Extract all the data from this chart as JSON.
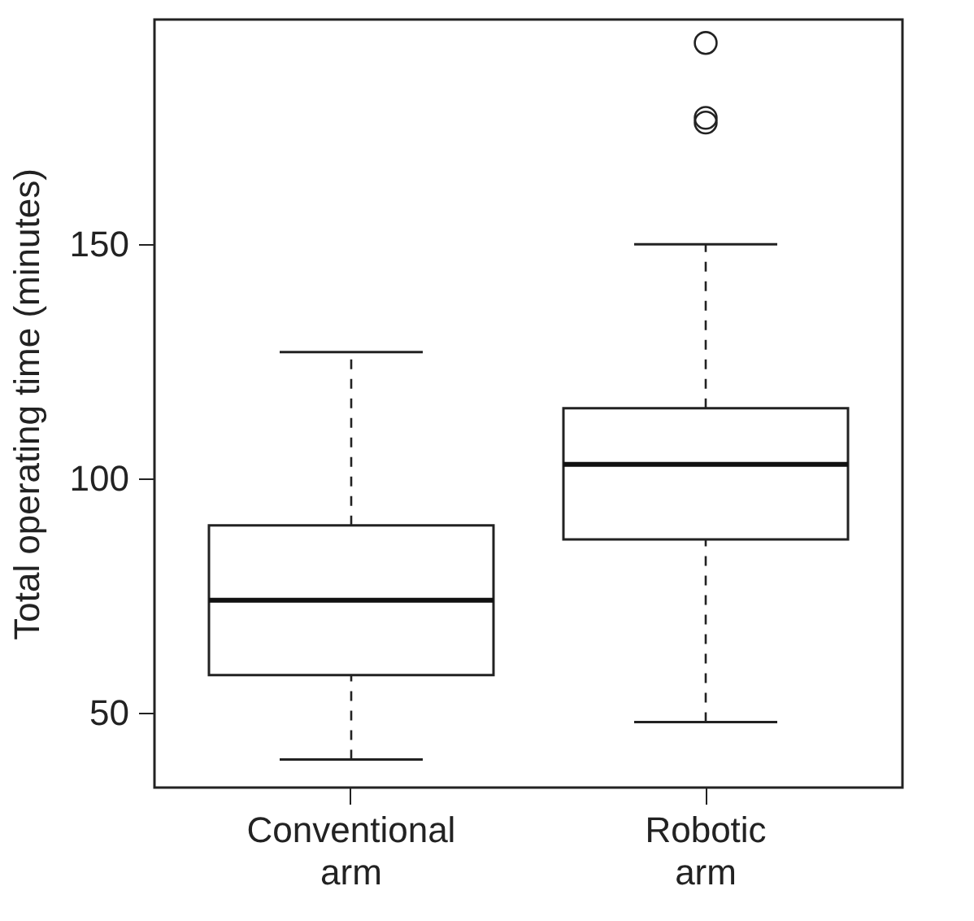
{
  "chart_data": {
    "type": "box",
    "ylabel": "Total operating time (minutes)",
    "categories": [
      "Conventional arm",
      "Robotic arm"
    ],
    "boxes": [
      {
        "low": 40,
        "q1": 58,
        "median": 74,
        "q3": 90,
        "high": 127
      },
      {
        "low": 48,
        "q1": 87,
        "median": 103,
        "q3": 115,
        "high": 150,
        "outliers": [
          193,
          177,
          176
        ]
      }
    ],
    "ylim": [
      34,
      198
    ],
    "yticks": [
      50,
      100,
      150
    ],
    "grid": false
  }
}
